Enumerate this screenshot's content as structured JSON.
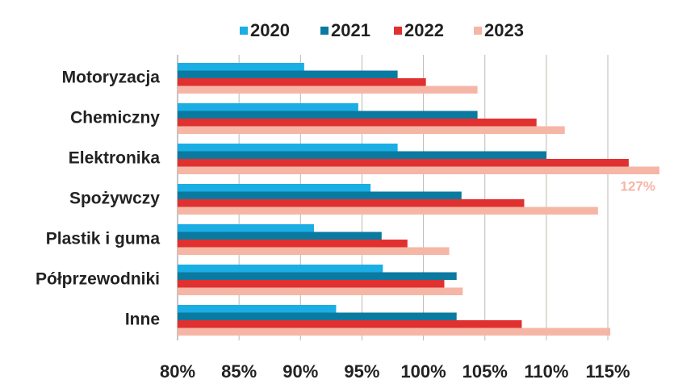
{
  "chart_data": {
    "type": "bar",
    "orientation": "horizontal",
    "categories": [
      "Motoryzacja",
      "Chemiczny",
      "Elektronika",
      "Spożywczy",
      "Plastik i guma",
      "Półprzewodniki",
      "Inne"
    ],
    "series": [
      {
        "name": "2020",
        "color": "#1aaee5",
        "values": [
          90.3,
          94.7,
          97.9,
          95.7,
          91.1,
          96.7,
          92.9
        ]
      },
      {
        "name": "2021",
        "color": "#0a7aa0",
        "values": [
          97.9,
          104.4,
          110.0,
          103.1,
          96.6,
          102.7,
          102.7
        ]
      },
      {
        "name": "2022",
        "color": "#e03030",
        "values": [
          100.2,
          109.2,
          116.7,
          108.2,
          98.7,
          101.7,
          108.0
        ]
      },
      {
        "name": "2023",
        "color": "#f6b6a6",
        "values": [
          104.4,
          111.5,
          127,
          114.2,
          102.1,
          103.2,
          115.2
        ],
        "value_labels": [
          null,
          null,
          "127%",
          null,
          null,
          null,
          null
        ]
      }
    ],
    "xlim": [
      80,
      119.2
    ],
    "xticks": [
      {
        "value": 80,
        "label": "80%"
      },
      {
        "value": 85,
        "label": "85%"
      },
      {
        "value": 90,
        "label": "90%"
      },
      {
        "value": 95,
        "label": "95%"
      },
      {
        "value": 100,
        "label": "100%"
      },
      {
        "value": 105,
        "label": "105%"
      },
      {
        "value": 110,
        "label": "110%"
      },
      {
        "value": 115,
        "label": "115%"
      }
    ],
    "grid": true,
    "legend": "top"
  }
}
